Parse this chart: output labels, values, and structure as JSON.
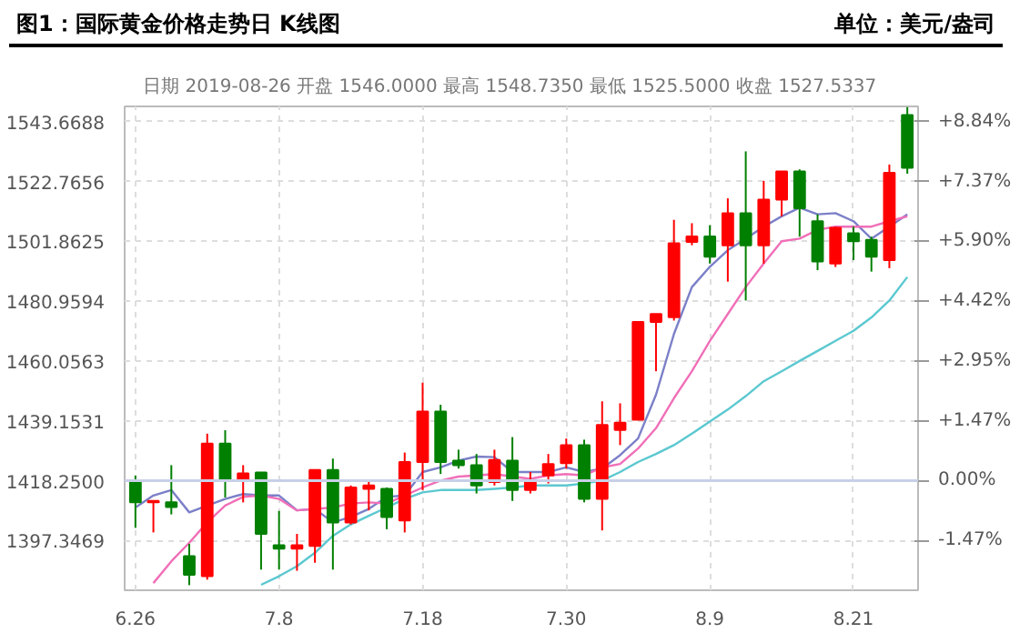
{
  "chart_data": {
    "type": "candlestick",
    "title": "图1：国际黄金价格走势日 K线图",
    "subtitle": "单位：美元/盎司",
    "annotations": [
      "日期 2019-08-26  开盘 1546.0000  最高 1548.7350  最低 1525.5000  收盘 1527.5337"
    ],
    "categories": [
      "6.26",
      null,
      null,
      null,
      null,
      null,
      null,
      null,
      "7.8",
      null,
      null,
      null,
      null,
      null,
      null,
      null,
      "7.18",
      null,
      null,
      null,
      null,
      null,
      null,
      null,
      "7.30",
      null,
      null,
      null,
      null,
      null,
      null,
      null,
      "8.9",
      null,
      null,
      null,
      null,
      null,
      null,
      null,
      "8.21",
      null,
      null,
      null
    ],
    "ohlc": [
      [
        1418.25,
        1420.1,
        1401.8,
        1410.7
      ],
      [
        1410.7,
        1411.2,
        1400.2,
        1411.2
      ],
      [
        1410.7,
        1423.7,
        1406.5,
        1409.1
      ],
      [
        1391.9,
        1396.2,
        1381.8,
        1385.4
      ],
      [
        1384.9,
        1434.7,
        1383.7,
        1431.2
      ],
      [
        1431.2,
        1435.9,
        1412.4,
        1418.25
      ],
      [
        1418.25,
        1423.7,
        1410.7,
        1420.8
      ],
      [
        1421.1,
        1421.1,
        1387.2,
        1399.7
      ],
      [
        1395.7,
        1407.7,
        1387.2,
        1394.5
      ],
      [
        1394.5,
        1399.7,
        1386.8,
        1395.7
      ],
      [
        1395.5,
        1422.0,
        1389.6,
        1422.0
      ],
      [
        1422.0,
        1426.0,
        1387.2,
        1403.7
      ],
      [
        1403.7,
        1416.6,
        1403.0,
        1415.9
      ],
      [
        1415.4,
        1417.8,
        1407.9,
        1416.6
      ],
      [
        1415.4,
        1415.9,
        1401.3,
        1405.6
      ],
      [
        1404.4,
        1428.1,
        1400.2,
        1424.8
      ],
      [
        1424.8,
        1452.5,
        1415.0,
        1442.4
      ],
      [
        1442.4,
        1444.8,
        1420.6,
        1424.8
      ],
      [
        1425.3,
        1429.1,
        1422.5,
        1423.7
      ],
      [
        1423.7,
        1427.6,
        1413.8,
        1416.6
      ],
      [
        1417.8,
        1429.1,
        1416.6,
        1425.5
      ],
      [
        1425.3,
        1433.5,
        1411.2,
        1415.0
      ],
      [
        1415.0,
        1421.3,
        1413.8,
        1418.25
      ],
      [
        1420.1,
        1427.6,
        1417.3,
        1424.1
      ],
      [
        1424.4,
        1433.0,
        1422.5,
        1430.7
      ],
      [
        1430.7,
        1432.6,
        1410.7,
        1411.9
      ],
      [
        1411.9,
        1446.0,
        1400.9,
        1437.7
      ],
      [
        1436.0,
        1445.3,
        1430.7,
        1438.5
      ],
      [
        1439.6,
        1473.7,
        1439.4,
        1473.7
      ],
      [
        1473.7,
        1476.5,
        1456.5,
        1476.5
      ],
      [
        1475.4,
        1509.4,
        1474.2,
        1501.2
      ],
      [
        1501.7,
        1508.2,
        1500.5,
        1503.6
      ],
      [
        1503.6,
        1507.5,
        1494.1,
        1496.5
      ],
      [
        1500.5,
        1516.9,
        1487.8,
        1511.7
      ],
      [
        1511.7,
        1533.3,
        1481.2,
        1500.5
      ],
      [
        1500.5,
        1523.0,
        1494.1,
        1516.4
      ],
      [
        1516.4,
        1526.3,
        1510.6,
        1526.3
      ],
      [
        1526.3,
        1527.0,
        1503.5,
        1513.4
      ],
      [
        1508.9,
        1511.3,
        1491.8,
        1494.8
      ],
      [
        1494.1,
        1507.0,
        1492.9,
        1506.6
      ],
      [
        1504.7,
        1507.0,
        1495.3,
        1501.9
      ],
      [
        1502.4,
        1503.5,
        1491.3,
        1496.5
      ],
      [
        1495.3,
        1528.7,
        1492.5,
        1525.8
      ],
      [
        1546.0,
        1548.735,
        1525.5,
        1527.5337
      ]
    ],
    "colors": [
      "#008000",
      "#ff0000",
      "#008000",
      "#008000",
      "#ff0000",
      "#008000",
      "#ff0000",
      "#008000",
      "#008000",
      "#ff0000",
      "#ff0000",
      "#008000",
      "#ff0000",
      "#ff0000",
      "#008000",
      "#ff0000",
      "#ff0000",
      "#008000",
      "#008000",
      "#008000",
      "#ff0000",
      "#008000",
      "#ff0000",
      "#ff0000",
      "#ff0000",
      "#008000",
      "#ff0000",
      "#ff0000",
      "#ff0000",
      "#ff0000",
      "#ff0000",
      "#ff0000",
      "#008000",
      "#ff0000",
      "#008000",
      "#ff0000",
      "#ff0000",
      "#008000",
      "#008000",
      "#ff0000",
      "#008000",
      "#008000",
      "#ff0000",
      "#008000"
    ],
    "series": [
      {
        "type": "line",
        "color": "#7b7fc8",
        "values": [
          1408.9,
          1413.1,
          1415.0,
          1407.2,
          1409.6,
          1411.9,
          1413.6,
          1413.1,
          1413.1,
          1407.9,
          1408.4,
          1403.7,
          1405.6,
          1408.4,
          1412.6,
          1413.1,
          1421.3,
          1422.9,
          1425.3,
          1426.7,
          1426.5,
          1421.3,
          1421.3,
          1421.3,
          1422.9,
          1421.3,
          1422.5,
          1427.2,
          1433.0,
          1448.3,
          1469.5,
          1485.9,
          1493.0,
          1498.8,
          1502.8,
          1507.0,
          1510.6,
          1513.6,
          1511.3,
          1511.7,
          1508.9,
          1502.8,
          1507.0,
          1511.3
        ]
      },
      {
        "type": "line",
        "color": "#f06fb8",
        "values": [
          null,
          1382.5,
          1390.1,
          1396.6,
          1403.7,
          1409.6,
          1412.6,
          1413.1,
          1411.9,
          1407.9,
          1408.4,
          1408.9,
          1410.3,
          1410.7,
          1410.3,
          1413.1,
          1415.9,
          1418.3,
          1419.7,
          1420.1,
          1420.6,
          1419.7,
          1418.9,
          1420.1,
          1420.6,
          1420.1,
          1422.9,
          1424.1,
          1429.5,
          1436.6,
          1447.1,
          1456.5,
          1467.1,
          1476.5,
          1485.9,
          1494.1,
          1501.9,
          1502.8,
          1505.9,
          1507.0,
          1507.0,
          1507.0,
          1508.9,
          1510.6
        ]
      },
      {
        "type": "line",
        "color": "#5bc8d0",
        "values": [
          null,
          null,
          null,
          null,
          null,
          null,
          null,
          1381.9,
          1384.9,
          1388.4,
          1393.1,
          1399.0,
          1403.0,
          1406.0,
          1408.9,
          1411.9,
          1414.2,
          1415.0,
          1415.0,
          1415.0,
          1415.4,
          1415.9,
          1416.6,
          1416.6,
          1416.6,
          1417.3,
          1418.3,
          1421.3,
          1424.8,
          1427.6,
          1430.7,
          1434.7,
          1438.9,
          1443.1,
          1447.8,
          1453.0,
          1456.5,
          1460.1,
          1463.6,
          1467.1,
          1470.6,
          1475.3,
          1481.2,
          1489.4
        ]
      }
    ],
    "ylim": [
      1380,
      1549
    ],
    "yticks": [
      {
        "value": 1397.3469,
        "label": "1397.3469"
      },
      {
        "value": 1418.25,
        "label": "1418.2500"
      },
      {
        "value": 1439.1531,
        "label": "1439.1531"
      },
      {
        "value": 1460.0563,
        "label": "1460.0563"
      },
      {
        "value": 1480.9594,
        "label": "1480.9594"
      },
      {
        "value": 1501.8625,
        "label": "1501.8625"
      },
      {
        "value": 1522.7656,
        "label": "1522.7656"
      },
      {
        "value": 1543.6688,
        "label": "1543.6688"
      }
    ],
    "y2lim": [
      -2.7,
      9.22
    ],
    "y2ticks": [
      {
        "value": -1.47,
        "label": "-1.47%"
      },
      {
        "value": 0,
        "label": "0.00%"
      },
      {
        "value": 1.47,
        "label": "+1.47%"
      },
      {
        "value": 2.95,
        "label": "+2.95%"
      },
      {
        "value": 4.42,
        "label": "+4.42%"
      },
      {
        "value": 5.9,
        "label": "+5.90%"
      },
      {
        "value": 7.37,
        "label": "+7.37%"
      },
      {
        "value": 8.84,
        "label": "+8.84%"
      }
    ],
    "ref_lines": [
      {
        "axis": "y",
        "value": 1418.25,
        "color": "#c8d0e8"
      }
    ],
    "grid": true
  }
}
